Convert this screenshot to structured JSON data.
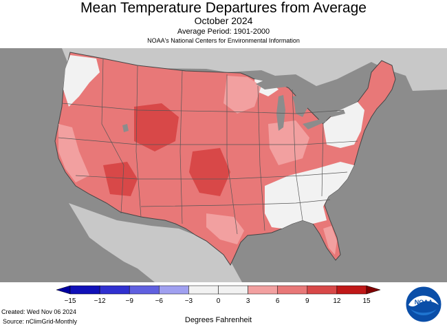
{
  "header": {
    "title": "Mean Temperature Departures from Average",
    "subtitle": "October 2024",
    "period": "Average Period: 1901-2000",
    "agency": "NOAA's National Centers for Environmental Information"
  },
  "legend": {
    "units": "Degrees Fahrenheit",
    "ticks": [
      "−15",
      "−12",
      "−9",
      "−6",
      "−3",
      "0",
      "3",
      "6",
      "9",
      "12",
      "15"
    ],
    "bins": [
      {
        "min": -15,
        "max": -12,
        "color": "#1010b8"
      },
      {
        "min": -12,
        "max": -9,
        "color": "#3030d0"
      },
      {
        "min": -9,
        "max": -6,
        "color": "#6060e0"
      },
      {
        "min": -6,
        "max": -3,
        "color": "#a0a0f0"
      },
      {
        "min": -3,
        "max": 0,
        "color": "#f2f2f2"
      },
      {
        "min": 0,
        "max": 3,
        "color": "#f2f2f2"
      },
      {
        "min": 3,
        "max": 6,
        "color": "#f2a0a0"
      },
      {
        "min": 6,
        "max": 9,
        "color": "#e87878"
      },
      {
        "min": 9,
        "max": 12,
        "color": "#d84848"
      },
      {
        "min": 12,
        "max": 15,
        "color": "#c01818"
      }
    ],
    "below_color": "#0000a0",
    "above_color": "#800000"
  },
  "footer": {
    "created": "Created: Wed Nov 06 2024",
    "source": "Source: nClimGrid-Monthly"
  },
  "logo": {
    "text": "NOAA"
  },
  "map": {
    "colors": {
      "ocean": "#8c8c8c",
      "land_outside": "#c8c8c8",
      "lakes": "#8c8c8c",
      "near_normal": "#f2f2f2",
      "warm_3_6": "#f2a0a0",
      "warm_6_9": "#e87878",
      "warm_9_12": "#d84848",
      "state_borders": "#555555"
    }
  }
}
